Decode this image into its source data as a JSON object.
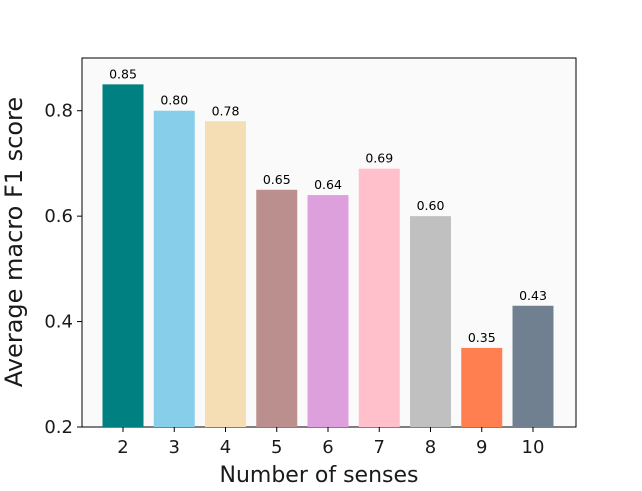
{
  "chart_data": {
    "type": "bar",
    "xlabel": "Number of senses",
    "ylabel": "Average macro F1 score",
    "ylim": [
      0.2,
      0.9
    ],
    "yticks": [
      "0.2",
      "0.4",
      "0.6",
      "0.8"
    ],
    "grid": false,
    "categories": [
      "2",
      "3",
      "4",
      "5",
      "6",
      "7",
      "8",
      "9",
      "10"
    ],
    "values": [
      0.85,
      0.8,
      0.78,
      0.65,
      0.64,
      0.69,
      0.6,
      0.35,
      0.43
    ],
    "value_labels": [
      "0.85",
      "0.80",
      "0.78",
      "0.65",
      "0.64",
      "0.69",
      "0.60",
      "0.35",
      "0.43"
    ],
    "colors": [
      "#008080",
      "#87ceeb",
      "#f5deb3",
      "#bc8f8f",
      "#dda0dd",
      "#ffc0cb",
      "#c0c0c0",
      "#ff7f50",
      "#708090"
    ],
    "plot_background": "#fafafa"
  }
}
